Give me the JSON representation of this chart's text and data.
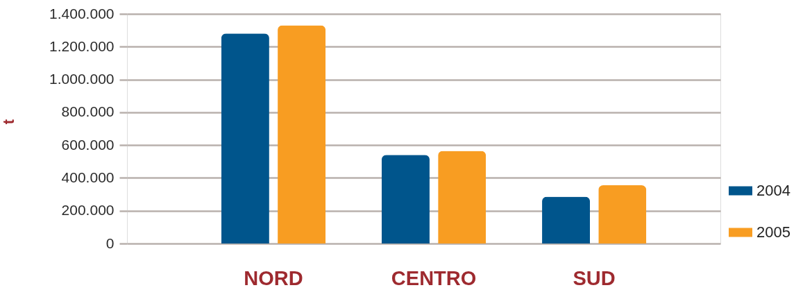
{
  "chart_data": {
    "type": "bar",
    "ylabel": "t",
    "categories": [
      "NORD",
      "CENTRO",
      "SUD"
    ],
    "series": [
      {
        "name": "2004",
        "color": "#00558c",
        "values": [
          1280000,
          540000,
          285000
        ]
      },
      {
        "name": "2005",
        "color": "#f89d22",
        "values": [
          1330000,
          565000,
          355000
        ]
      }
    ],
    "ylim": [
      0,
      1400000
    ],
    "yticks": [
      0,
      {
        "value": 200000,
        "label": "200.000"
      },
      {
        "value": 400000,
        "label": "400.000"
      },
      {
        "value": 600000,
        "label": "600.000"
      },
      {
        "value": 800000,
        "label": "800.000"
      },
      {
        "value": 1000000,
        "label": "1.000.000"
      },
      {
        "value": 1200000,
        "label": "1.200.000"
      },
      {
        "value": 1400000,
        "label": "1.400.000"
      }
    ],
    "grid": "y",
    "legend": "bottom right"
  }
}
